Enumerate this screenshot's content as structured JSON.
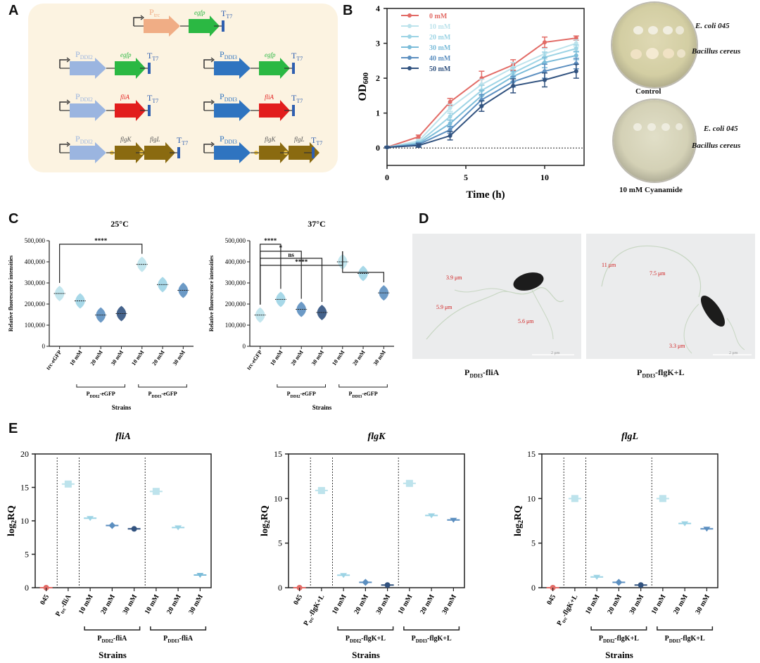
{
  "panels": {
    "A": "A",
    "B": "B",
    "C": "C",
    "D": "D",
    "E": "E"
  },
  "colors": {
    "c0": "#e26b66",
    "c10": "#bde3ec",
    "c20": "#9dd4e5",
    "c30": "#7bbcd9",
    "c40": "#5c8fc0",
    "c50": "#31527f",
    "orange": "#f0ad85",
    "green": "#2bb843",
    "red": "#e21d1d",
    "brown": "#8a6a10",
    "light_blue": "#9bb5e0",
    "blue": "#2f74c0",
    "navy": "#1f3f77"
  },
  "panel_a": {
    "ptrc_label": "P",
    "ptrc_sub": "trc",
    "egfp": "egfp",
    "flia": "fliA",
    "flgk": "flgK",
    "flgl": "flgL",
    "t7_label": "T",
    "t7_sub": "T7",
    "pddi2_label": "P",
    "pddi2_sub": "DDI2",
    "pddi3_label": "P",
    "pddi3_sub": "DDI3"
  },
  "panel_b_plates": {
    "control_label": "Control",
    "cyanamide_label": "10 mM Cyanamide",
    "ecoli_label": "E. coli 045",
    "bacillus_label": "Bacillus cereus"
  },
  "panel_d": {
    "left_caption": "P",
    "left_caption_sub": "DDI3",
    "left_caption_suffix": "-fliA",
    "right_caption": "P",
    "right_caption_sub": "DDI3",
    "right_caption_suffix": "-flgK+L",
    "left_measures": [
      "3.9 μm",
      "5.9 μm",
      "5.6 μm"
    ],
    "right_measures": [
      "11 μm",
      "7.5 μm",
      "3.3 μm"
    ],
    "scale_label": "2 μm"
  },
  "chart_data": [
    {
      "id": "B",
      "type": "line",
      "title": "",
      "xlabel": "Time (h)",
      "ylabel": "OD",
      "ylabel_sub": "600",
      "xlim": [
        0,
        12.5
      ],
      "ylim": [
        -0.5,
        4
      ],
      "x": [
        0,
        2,
        4,
        6,
        8,
        10,
        12
      ],
      "x_ticks": [
        0,
        5,
        10
      ],
      "y_ticks": [
        0,
        1,
        2,
        3,
        4
      ],
      "series": [
        {
          "name": "0 mM",
          "color": "#e26b66",
          "values": [
            0.02,
            0.32,
            1.32,
            2.0,
            2.38,
            3.03,
            3.15
          ],
          "errors": [
            0.02,
            0.05,
            0.1,
            0.2,
            0.15,
            0.15,
            0.06
          ]
        },
        {
          "name": "10 mM",
          "color": "#bde3ec",
          "values": [
            0.02,
            0.2,
            1.15,
            1.82,
            2.3,
            2.7,
            3.0
          ],
          "errors": [
            0.02,
            0.05,
            0.1,
            0.15,
            0.15,
            0.15,
            0.1
          ]
        },
        {
          "name": "20 mM",
          "color": "#9dd4e5",
          "values": [
            0.02,
            0.15,
            0.9,
            1.65,
            2.15,
            2.6,
            2.85
          ],
          "errors": [
            0.02,
            0.05,
            0.1,
            0.15,
            0.15,
            0.15,
            0.1
          ]
        },
        {
          "name": "30 mM",
          "color": "#7bbcd9",
          "values": [
            0.02,
            0.12,
            0.7,
            1.5,
            2.05,
            2.45,
            2.65
          ],
          "errors": [
            0.02,
            0.05,
            0.1,
            0.15,
            0.15,
            0.15,
            0.12
          ]
        },
        {
          "name": "40 mM",
          "color": "#5c8fc0",
          "values": [
            0.02,
            0.1,
            0.52,
            1.38,
            1.9,
            2.2,
            2.42
          ],
          "errors": [
            0.02,
            0.05,
            0.1,
            0.15,
            0.15,
            0.2,
            0.15
          ]
        },
        {
          "name": "50 mM",
          "color": "#31527f",
          "values": [
            0.02,
            0.07,
            0.35,
            1.2,
            1.78,
            1.95,
            2.2
          ],
          "errors": [
            0.02,
            0.05,
            0.12,
            0.15,
            0.2,
            0.2,
            0.2
          ]
        }
      ]
    },
    {
      "id": "C1",
      "type": "violin",
      "title": "25°C",
      "xlabel": "Strains",
      "ylabel": "Relative fluorescence intensities",
      "ylim": [
        0,
        500000
      ],
      "y_ticks": [
        "0",
        "100,000",
        "200,000",
        "300,000",
        "400,000",
        "500,000"
      ],
      "categories": [
        "trc-eGFP",
        "10 mM",
        "20 mM",
        "30 mM",
        "10 mM",
        "20 mM",
        "30 mM"
      ],
      "values": [
        250000,
        215000,
        148000,
        155000,
        388000,
        292000,
        265000
      ],
      "group_labels": [
        {
          "text": "P",
          "sub": "DDI2",
          "suffix": "-eGFP"
        },
        {
          "text": "P",
          "sub": "DDI3",
          "suffix": "-eGFP"
        }
      ],
      "significance": [
        {
          "from": 0,
          "to": 4,
          "label": "****"
        }
      ]
    },
    {
      "id": "C2",
      "type": "violin",
      "title": "37°C",
      "xlabel": "Strains",
      "ylabel": "Relative fluorescence intensities",
      "ylim": [
        0,
        500000
      ],
      "y_ticks": [
        "0",
        "100,000",
        "200,000",
        "300,000",
        "400,000",
        "500,000"
      ],
      "categories": [
        "trc-eGFP",
        "10 mM",
        "20 mM",
        "30 mM",
        "10 mM",
        "20 mM",
        "30 mM"
      ],
      "values": [
        148000,
        222000,
        175000,
        160000,
        400000,
        345000,
        253000
      ],
      "group_labels": [
        {
          "text": "P",
          "sub": "DDI2",
          "suffix": "-eGFP"
        },
        {
          "text": "P",
          "sub": "DDI3",
          "suffix": "-eGFP"
        }
      ],
      "significance": [
        {
          "from": 0,
          "to": 1,
          "label": "****"
        },
        {
          "from": 0,
          "to": 2,
          "label": "*"
        },
        {
          "from": 0,
          "to": 3,
          "label": "ns"
        },
        {
          "from": 0,
          "to": 4,
          "label": "****"
        },
        {
          "from": 4,
          "to": 6,
          "label": ""
        }
      ]
    },
    {
      "id": "E1",
      "type": "scatter",
      "title": "fliA",
      "xlabel": "Strains",
      "ylabel": "log",
      "ylabel_sub": "2",
      "ylabel_suffix": "RQ",
      "ylim": [
        0,
        20
      ],
      "y_ticks": [
        0,
        5,
        10,
        15,
        20
      ],
      "categories": [
        "045",
        "P trc-fliA",
        "10 mM",
        "20 mM",
        "30 mM",
        "10 mM",
        "20 mM",
        "30 mM"
      ],
      "cat_main": [
        "045",
        "P",
        "10 mM",
        "20 mM",
        "30 mM",
        "10 mM",
        "20 mM",
        "30 mM"
      ],
      "cat_sub": [
        "",
        "trc",
        "",
        "",
        "",
        "",
        "",
        ""
      ],
      "cat_suffix": [
        "",
        "-fliA",
        "",
        "",
        "",
        "",
        "",
        ""
      ],
      "values": [
        0,
        15.5,
        10.4,
        9.3,
        8.8,
        14.4,
        9.0,
        1.9
      ],
      "point_colors": [
        "#e26b66",
        "#bde3ec",
        "#9dd4e5",
        "#5c8fc0",
        "#31527f",
        "#bde3ec",
        "#9dd4e5",
        "#7bbcd9"
      ],
      "group_labels": [
        {
          "text": "P",
          "sub": "DDI2",
          "suffix": "-fliA"
        },
        {
          "text": "P",
          "sub": "DDI3",
          "suffix": "-fliA"
        }
      ]
    },
    {
      "id": "E2",
      "type": "scatter",
      "title": "flgK",
      "xlabel": "Strains",
      "ylabel": "log",
      "ylabel_sub": "2",
      "ylabel_suffix": "RQ",
      "ylim": [
        0,
        15
      ],
      "y_ticks": [
        0,
        5,
        10,
        15
      ],
      "categories": [
        "045",
        "P trc-flgK+L",
        "10 mM",
        "20 mM",
        "30 mM",
        "10 mM",
        "20 mM",
        "30 mM"
      ],
      "cat_main": [
        "045",
        "P",
        "10 mM",
        "20 mM",
        "30 mM",
        "10 mM",
        "20 mM",
        "30 mM"
      ],
      "cat_sub": [
        "",
        "trc",
        "",
        "",
        "",
        "",
        "",
        ""
      ],
      "cat_suffix": [
        "",
        "-flgK+L",
        "",
        "",
        "",
        "",
        "",
        ""
      ],
      "values": [
        0,
        10.9,
        1.4,
        0.6,
        0.3,
        11.7,
        8.1,
        7.6
      ],
      "point_colors": [
        "#e26b66",
        "#bde3ec",
        "#9dd4e5",
        "#5c8fc0",
        "#31527f",
        "#bde3ec",
        "#9dd4e5",
        "#5c8fc0"
      ],
      "group_labels": [
        {
          "text": "P",
          "sub": "DDI2",
          "suffix": "-flgK+L"
        },
        {
          "text": "P",
          "sub": "DDI3",
          "suffix": "-flgK+L"
        }
      ]
    },
    {
      "id": "E3",
      "type": "scatter",
      "title": "flgL",
      "xlabel": "Strains",
      "ylabel": "log",
      "ylabel_sub": "2",
      "ylabel_suffix": "RQ",
      "ylim": [
        0,
        15
      ],
      "y_ticks": [
        0,
        5,
        10,
        15
      ],
      "categories": [
        "045",
        "P trc-flgK+L",
        "10 mM",
        "20 mM",
        "30 mM",
        "10 mM",
        "20 mM",
        "30 mM"
      ],
      "cat_main": [
        "045",
        "P",
        "10 mM",
        "20 mM",
        "30 mM",
        "10 mM",
        "20 mM",
        "30 mM"
      ],
      "cat_sub": [
        "",
        "trc",
        "",
        "",
        "",
        "",
        "",
        ""
      ],
      "cat_suffix": [
        "",
        "-flgK+L",
        "",
        "",
        "",
        "",
        "",
        ""
      ],
      "values": [
        0,
        10.0,
        1.2,
        0.6,
        0.3,
        10.0,
        7.2,
        6.6
      ],
      "point_colors": [
        "#e26b66",
        "#bde3ec",
        "#9dd4e5",
        "#5c8fc0",
        "#31527f",
        "#bde3ec",
        "#9dd4e5",
        "#5c8fc0"
      ],
      "group_labels": [
        {
          "text": "P",
          "sub": "DDI2",
          "suffix": "-flgK+L"
        },
        {
          "text": "P",
          "sub": "DDI3",
          "suffix": "-flgK+L"
        }
      ]
    }
  ]
}
